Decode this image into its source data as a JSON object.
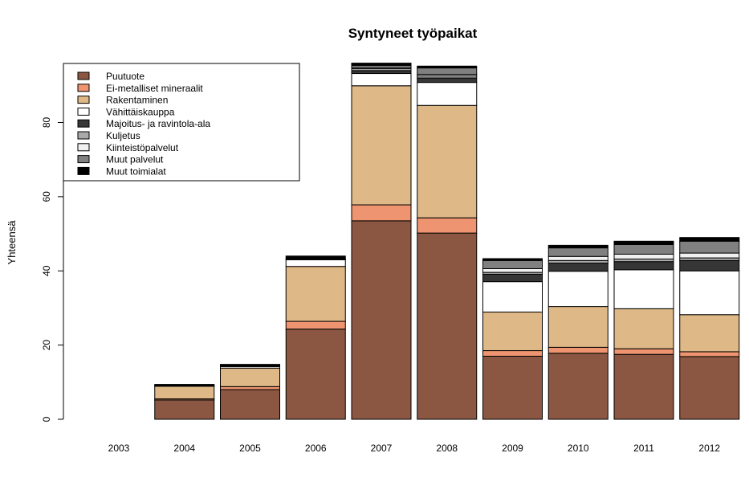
{
  "chart_data": {
    "type": "bar",
    "stacked": true,
    "title": "Syntyneet työpaikat",
    "xlabel": "",
    "ylabel": "Yhteensä",
    "ylim": [
      0,
      100
    ],
    "yticks": [
      0,
      20,
      40,
      60,
      80
    ],
    "grid": false,
    "legend_position": "top-left",
    "categories": [
      "2003",
      "2004",
      "2005",
      "2006",
      "2007",
      "2008",
      "2009",
      "2010",
      "2011",
      "2012"
    ],
    "series": [
      {
        "name": "Puutuote",
        "color": "#8b5742",
        "values": [
          0,
          5.2,
          8.0,
          24.3,
          53.5,
          50.2,
          17.0,
          17.8,
          17.5,
          16.9
        ]
      },
      {
        "name": "Ei-metalliset mineraalit",
        "color": "#ee9470",
        "values": [
          0,
          0.3,
          0.8,
          2.1,
          4.3,
          4.1,
          1.5,
          1.6,
          1.5,
          1.3
        ]
      },
      {
        "name": "Rakentaminen",
        "color": "#deb887",
        "values": [
          0,
          3.4,
          5.0,
          14.8,
          32.1,
          30.3,
          10.4,
          11.0,
          10.8,
          10.0
        ]
      },
      {
        "name": "Vähittäiskauppa",
        "color": "#ffffff",
        "values": [
          0,
          0.2,
          0.4,
          1.8,
          3.3,
          6.2,
          8.2,
          9.5,
          10.5,
          11.8
        ]
      },
      {
        "name": "Majoitus- ja ravintola-ala",
        "color": "#363636",
        "values": [
          0,
          0.1,
          0.2,
          0.2,
          0.8,
          1.2,
          2.0,
          2.2,
          2.2,
          2.8
        ]
      },
      {
        "name": "Kuljetus",
        "color": "#a9a9a9",
        "values": [
          0,
          0,
          0,
          0,
          0.5,
          0.6,
          0.5,
          0.7,
          0.7,
          0.7
        ]
      },
      {
        "name": "Kiinteistöpalvelut",
        "color": "#f0f0f0",
        "values": [
          0,
          0,
          0,
          0,
          0.3,
          0.4,
          1.0,
          1.1,
          1.3,
          1.3
        ]
      },
      {
        "name": "Muut palvelut",
        "color": "#808080",
        "values": [
          0,
          0,
          0,
          0,
          0.6,
          1.7,
          2.2,
          2.3,
          2.6,
          3.2
        ]
      },
      {
        "name": "Muut toimialat",
        "color": "#000000",
        "values": [
          0,
          0.2,
          0.4,
          0.8,
          0.6,
          0.5,
          0.5,
          0.7,
          0.9,
          1.0
        ]
      }
    ]
  }
}
